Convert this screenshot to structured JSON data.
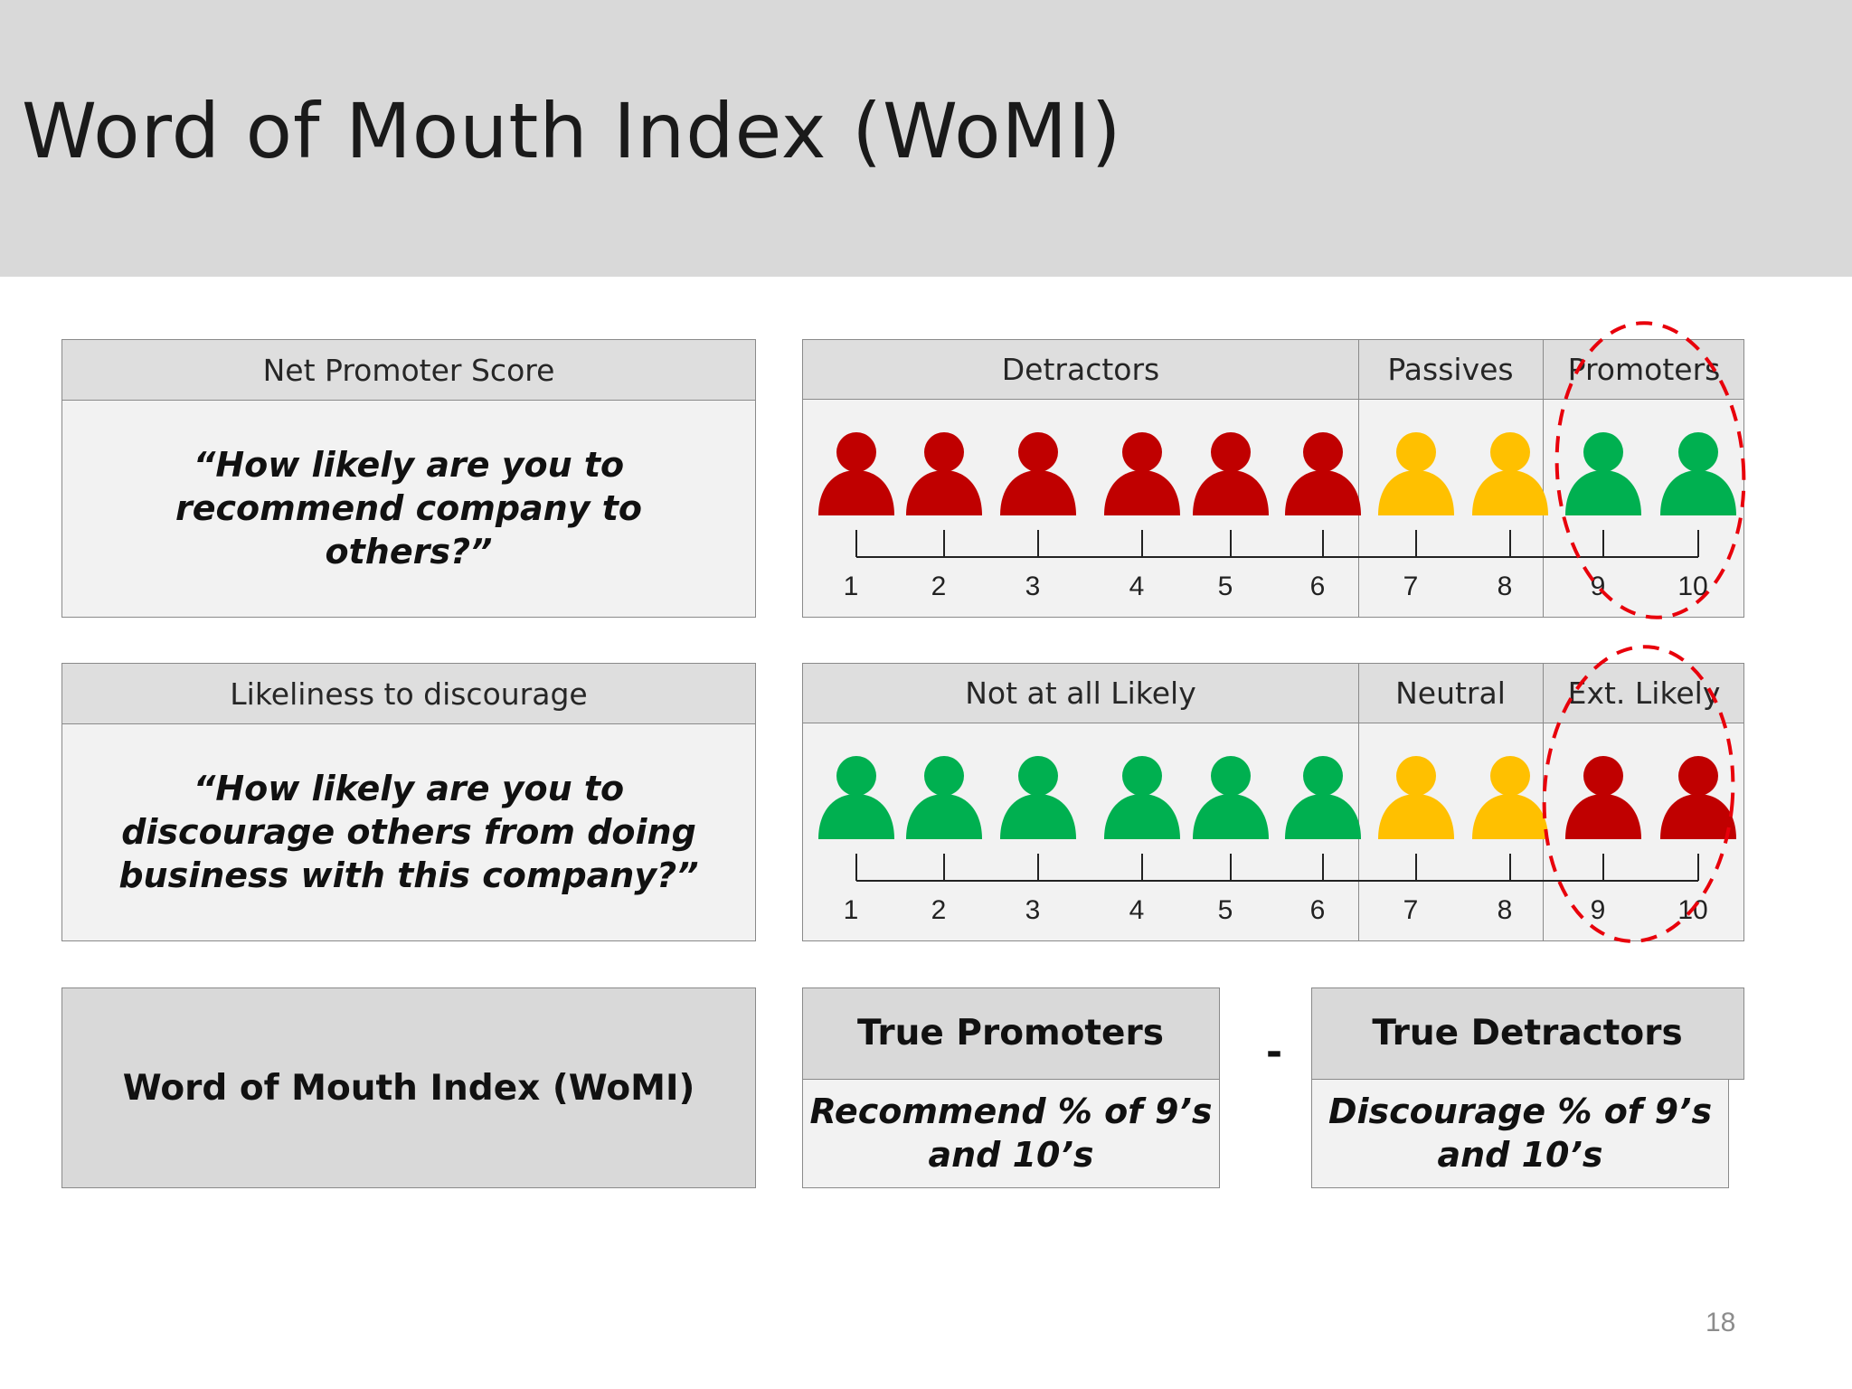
{
  "title": "Word of Mouth Index (WoMI)",
  "nps": {
    "header": "Net Promoter Score",
    "question": "“How likely are you to recommend company to others?”"
  },
  "discourage": {
    "header": "Likeliness to discourage",
    "question": "“How likely are you to discourage others from doing business with this company?”"
  },
  "colors": {
    "red": "#c00000",
    "yellow": "#ffc000",
    "green": "#00b050",
    "oval": "#e8000b"
  },
  "scale_top": {
    "groups": [
      "Detractors",
      "Passives",
      "Promoters"
    ],
    "numbers": [
      "1",
      "2",
      "3",
      "4",
      "5",
      "6",
      "7",
      "8",
      "9",
      "10"
    ],
    "figure_colors": [
      "red",
      "red",
      "red",
      "red",
      "red",
      "red",
      "yellow",
      "yellow",
      "green",
      "green"
    ],
    "highlighted_scores": [
      "9",
      "10"
    ]
  },
  "scale_bottom": {
    "groups": [
      "Not at all Likely",
      "Neutral",
      "Ext. Likely"
    ],
    "numbers": [
      "1",
      "2",
      "3",
      "4",
      "5",
      "6",
      "7",
      "8",
      "9",
      "10"
    ],
    "figure_colors": [
      "green",
      "green",
      "green",
      "green",
      "green",
      "green",
      "yellow",
      "yellow",
      "red",
      "red"
    ],
    "highlighted_scores": [
      "9",
      "10"
    ]
  },
  "womi_label": "Word of Mouth Index (WoMI)",
  "true_promoters": {
    "header": "True Promoters",
    "body": "Recommend % of 9’s and 10’s"
  },
  "operator": "-",
  "true_detractors": {
    "header": "True Detractors",
    "body": "Discourage % of 9’s and 10’s"
  },
  "page_number": "18"
}
